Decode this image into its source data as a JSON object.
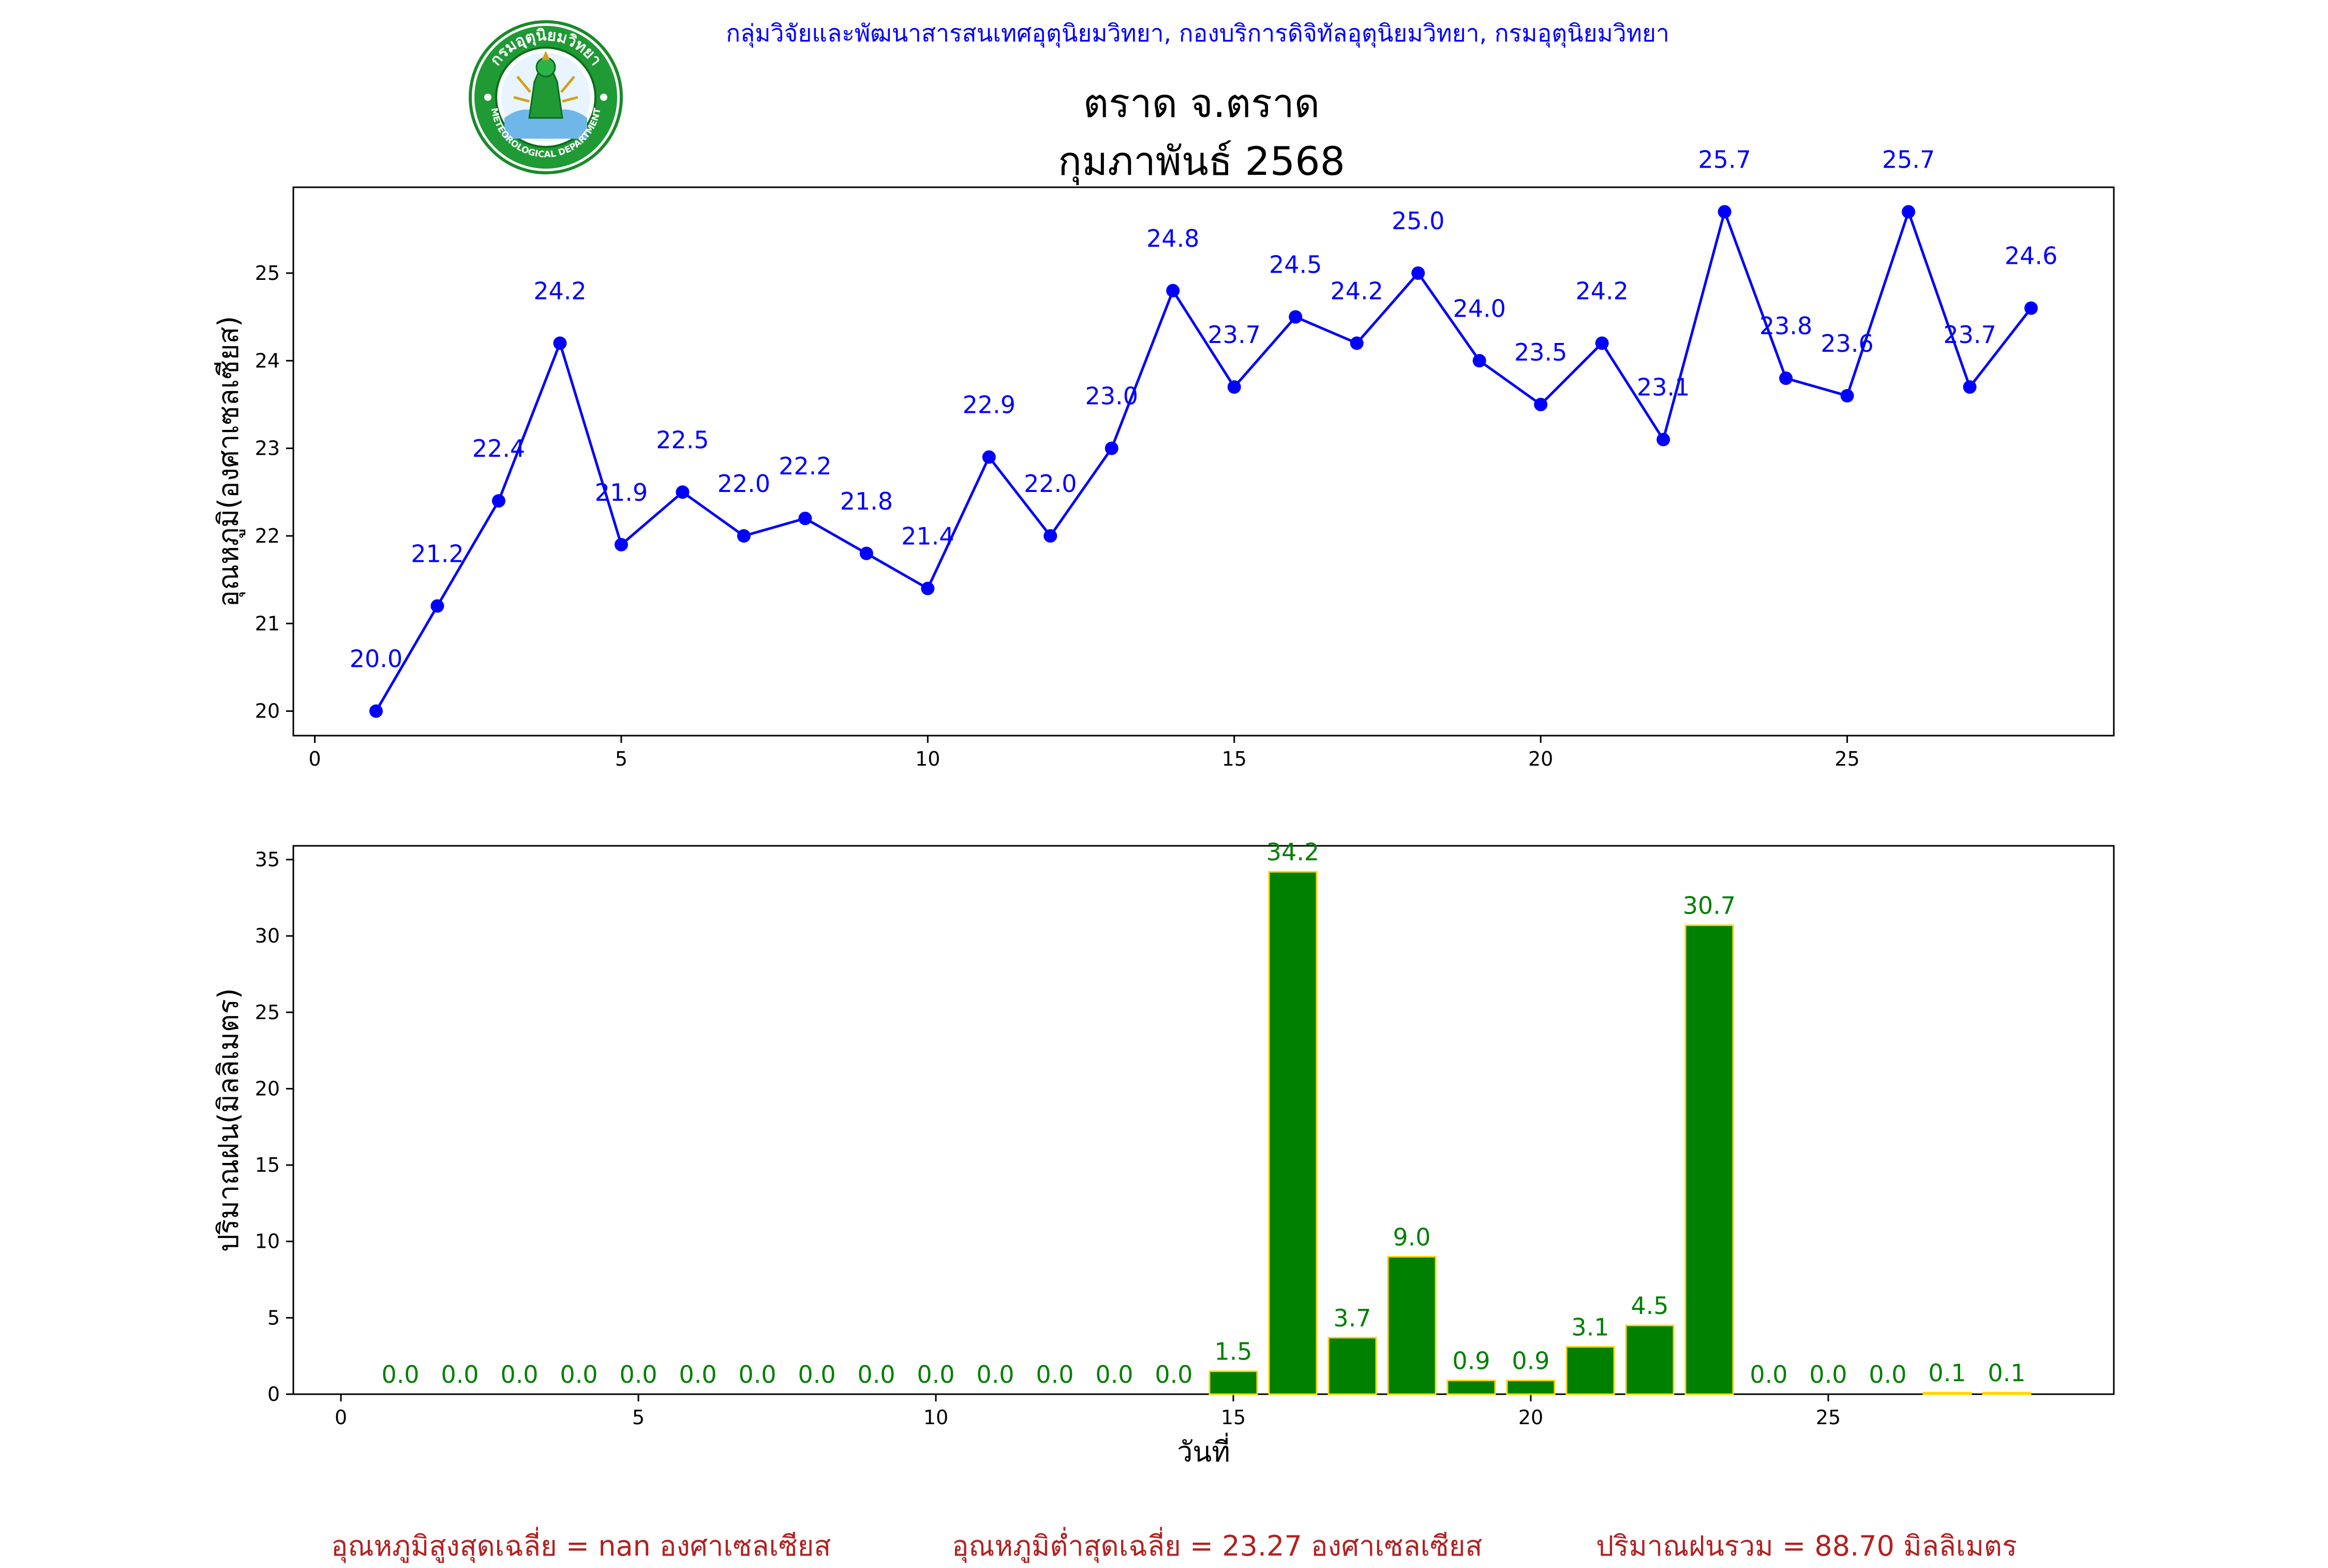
{
  "header": {
    "organization": "กลุ่มวิจัยและพัฒนาสารสนเทศอุตุนิยมวิทยา, กองบริการดิจิทัลอุตุนิยมวิทยา, กรมอุตุนิยมวิทยา",
    "station": "ตราด จ.ตราด",
    "month": "กุมภาพันธ์ 2568",
    "logo_text": "กรมอุตุนิยมวิทยา METEOROLOGICAL DEPARTMENT"
  },
  "chart_data": [
    {
      "type": "line",
      "ylabel": "อุณหภูมิ(องศาเซลเซียส)",
      "xlabel": "",
      "color": "#0000ff",
      "x": [
        1,
        2,
        3,
        4,
        5,
        6,
        7,
        8,
        9,
        10,
        11,
        12,
        13,
        14,
        15,
        16,
        17,
        18,
        19,
        20,
        21,
        22,
        23,
        24,
        25,
        26,
        27,
        28
      ],
      "values": [
        20.0,
        21.2,
        22.4,
        24.2,
        21.9,
        22.5,
        22.0,
        22.2,
        21.8,
        21.4,
        22.9,
        22.0,
        23.0,
        24.8,
        23.7,
        24.5,
        24.2,
        25.0,
        24.0,
        23.5,
        24.2,
        23.1,
        25.7,
        23.8,
        23.6,
        25.7,
        23.7,
        24.6
      ],
      "labels": [
        "20.0",
        "21.2",
        "22.4",
        "24.2",
        "21.9",
        "22.5",
        "22.0",
        "22.2",
        "21.8",
        "21.4",
        "22.9",
        "22.0",
        "23.0",
        "24.8",
        "23.7",
        "24.5",
        "24.2",
        "25.0",
        "24.0",
        "23.5",
        "24.2",
        "23.1",
        "25.7",
        "23.8",
        "23.6",
        "25.7",
        "23.7",
        "24.6"
      ],
      "xlim": [
        -0.35,
        29.35
      ],
      "ylim": [
        19.72,
        25.98
      ],
      "xticks": [
        0,
        5,
        10,
        15,
        20,
        25
      ],
      "yticks": [
        20,
        21,
        22,
        23,
        24,
        25
      ]
    },
    {
      "type": "bar",
      "xlabel": "วันที่",
      "ylabel": "ปริมาณฝน(มิลลิเมตร)",
      "color": "#008000",
      "edge_color": "#ffd700",
      "x": [
        1,
        2,
        3,
        4,
        5,
        6,
        7,
        8,
        9,
        10,
        11,
        12,
        13,
        14,
        15,
        16,
        17,
        18,
        19,
        20,
        21,
        22,
        23,
        24,
        25,
        26,
        27,
        28
      ],
      "values": [
        0,
        0,
        0,
        0,
        0,
        0,
        0,
        0,
        0,
        0,
        0,
        0,
        0,
        0,
        1.5,
        34.2,
        3.7,
        9.0,
        0.9,
        0.9,
        3.1,
        4.5,
        30.7,
        0,
        0,
        0,
        0.1,
        0.1
      ],
      "labels": [
        "0.0",
        "0.0",
        "0.0",
        "0.0",
        "0.0",
        "0.0",
        "0.0",
        "0.0",
        "0.0",
        "0.0",
        "0.0",
        "0.0",
        "0.0",
        "0.0",
        "1.5",
        "34.2",
        "3.7",
        "9.0",
        "0.9",
        "0.9",
        "3.1",
        "4.5",
        "30.7",
        "0.0",
        "0.0",
        "0.0",
        "0.1",
        "0.1"
      ],
      "xlim": [
        -0.8,
        29.8
      ],
      "ylim": [
        0,
        35.9
      ],
      "xticks": [
        0,
        5,
        10,
        15,
        20,
        25
      ],
      "yticks": [
        0,
        5,
        10,
        15,
        20,
        25,
        30,
        35
      ]
    }
  ],
  "footer": {
    "avg_max": "อุณหภูมิสูงสุดเฉลี่ย = nan องศาเซลเซียส",
    "avg_min": "อุณหภูมิต่ำสุดเฉลี่ย = 23.27 องศาเซลเซียส",
    "total_rain": "ปริมาณฝนรวม = 88.70 มิลลิเมตร"
  }
}
